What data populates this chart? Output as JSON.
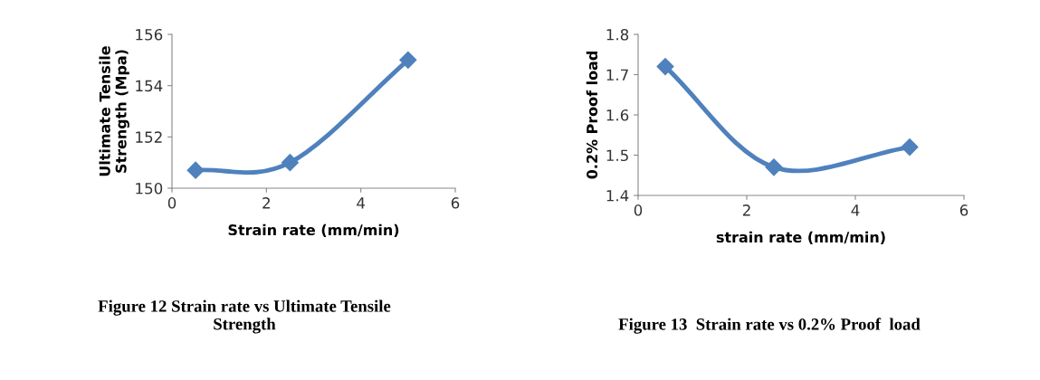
{
  "chart_data": [
    {
      "type": "line",
      "x": [
        0.5,
        2.5,
        5
      ],
      "series": [
        {
          "color": "#4f81bd",
          "values": [
            150.7,
            151.0,
            155.0
          ]
        }
      ],
      "xlabel": "Strain rate (mm/min)",
      "ylabel": "Ultimate Tensile\nStrength (Mpa)",
      "xlim": [
        0,
        6
      ],
      "xticks": [
        0,
        2,
        4,
        6
      ],
      "ylim": [
        150,
        156
      ],
      "yticks": [
        150,
        152,
        154,
        156
      ],
      "marker": "diamond",
      "line_style": "solid",
      "grid": false,
      "annotations": [
        "Figure 12 Strain rate vs Ultimate Tensile\nStrength"
      ]
    },
    {
      "type": "line",
      "x": [
        0.5,
        2.5,
        5
      ],
      "series": [
        {
          "color": "#4f81bd",
          "values": [
            1.72,
            1.47,
            1.52
          ]
        }
      ],
      "xlabel": "strain rate (mm/min)",
      "ylabel": "0.2% Proof load",
      "xlim": [
        0,
        6
      ],
      "xticks": [
        0,
        2,
        4,
        6
      ],
      "ylim": [
        1.4,
        1.8
      ],
      "yticks": [
        {
          "value": 1.4,
          "label": "1.4"
        },
        {
          "value": 1.5,
          "label": "1.5"
        },
        {
          "value": 1.6,
          "label": "1.6"
        },
        {
          "value": 1.7,
          "label": "1.7"
        },
        {
          "value": 1.8,
          "label": "1.8"
        }
      ],
      "marker": "diamond",
      "line_style": "solid",
      "grid": false,
      "annotations": [
        "Figure 13  Strain rate vs 0.2% Proof  load"
      ]
    }
  ]
}
